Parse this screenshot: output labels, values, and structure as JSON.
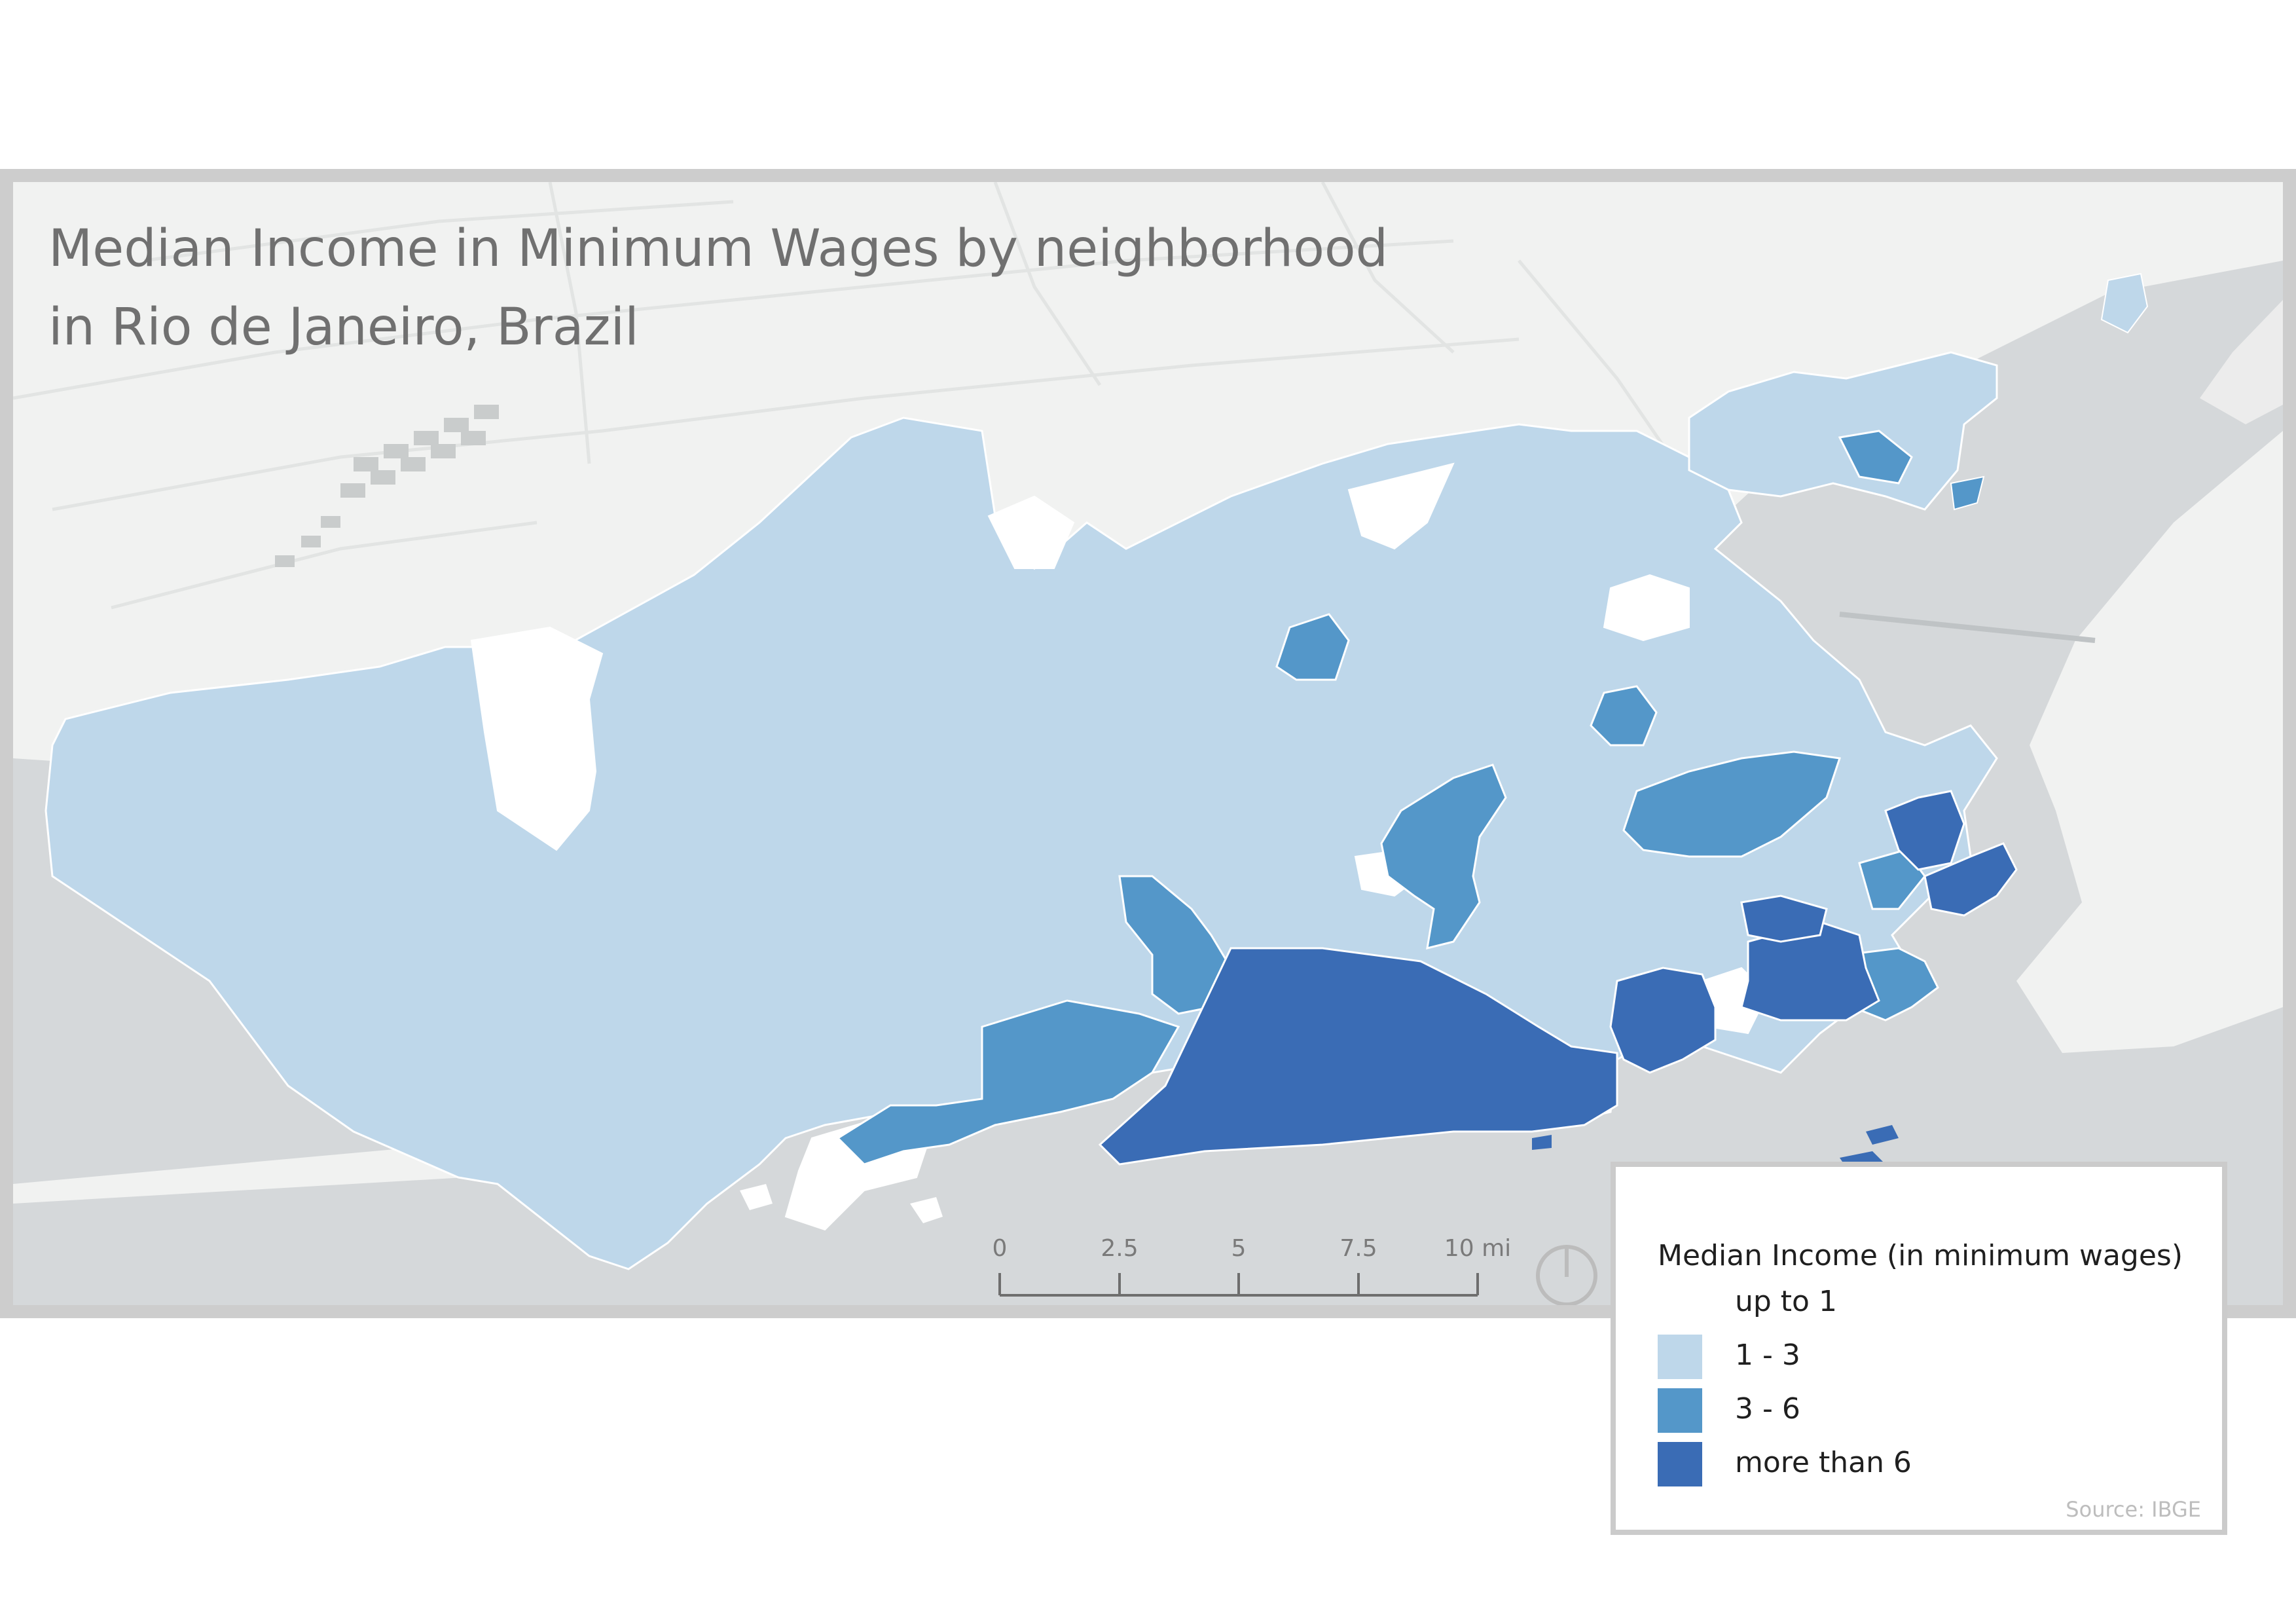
{
  "map": {
    "title_line1": "Median Income in Minimum Wages by neighborhood",
    "title_line2": "in Rio de Janeiro, Brazil",
    "colors": {
      "water": "#d5d8da",
      "land": "#f1f2f1",
      "roads": "#e3e5e4",
      "up_to_1": "#ffffff",
      "c1_3": "#bed7ea",
      "c3_6": "#5497c9",
      "more_than_6": "#3a6cb5",
      "boundary": "#ffffff"
    }
  },
  "scale_bar": {
    "ticks": [
      "0",
      "2.5",
      "5",
      "7.5",
      "10 mi"
    ]
  },
  "north_arrow": {
    "icon": "north-arrow-icon"
  },
  "legend": {
    "title": "Median Income (in minimum wages)",
    "items": [
      {
        "label": "up to 1",
        "color": "#ffffff"
      },
      {
        "label": "1 - 3",
        "color": "#bed7ea"
      },
      {
        "label": "3 - 6",
        "color": "#5497c9"
      },
      {
        "label": "more than 6",
        "color": "#3a6cb5"
      }
    ],
    "source": "Source: IBGE"
  }
}
